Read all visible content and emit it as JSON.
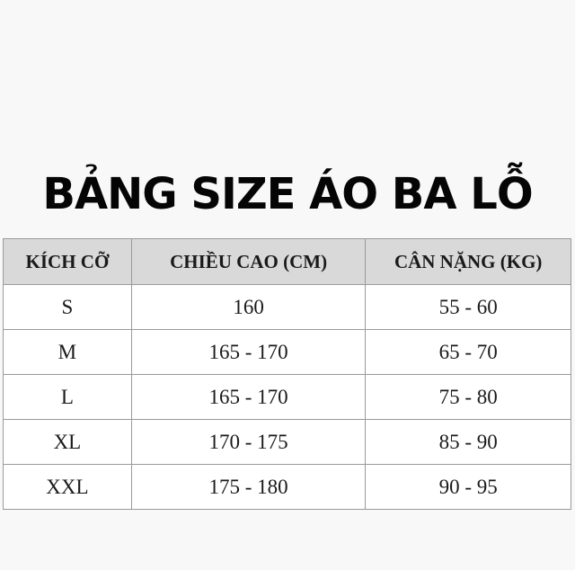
{
  "title": "BẢNG SIZE ÁO BA LỖ",
  "table": {
    "headers": [
      "KÍCH CỠ",
      "CHIỀU CAO (CM)",
      "CÂN NẶNG (KG)"
    ],
    "rows": [
      [
        "S",
        "160",
        "55 - 60"
      ],
      [
        "M",
        "165 - 170",
        "65 - 70"
      ],
      [
        "L",
        "165 - 170",
        "75 - 80"
      ],
      [
        "XL",
        "170 - 175",
        "85 - 90"
      ],
      [
        "XXL",
        "175 - 180",
        "90 - 95"
      ]
    ]
  },
  "colors": {
    "header_bg": "#d9d9d9",
    "border": "#9a9a9a",
    "background": "#f8f8f8"
  }
}
